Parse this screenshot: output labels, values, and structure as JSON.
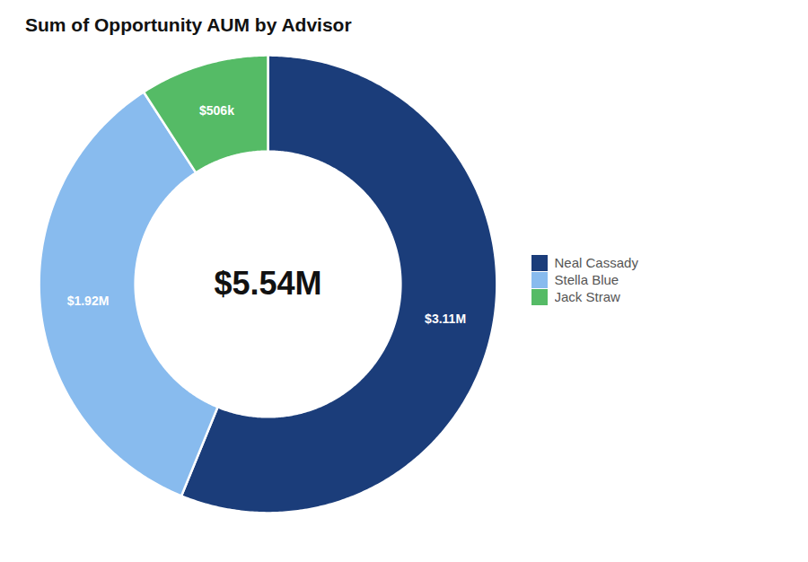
{
  "chart_data": {
    "type": "donut",
    "title": "Sum of Opportunity AUM by Advisor",
    "center_text": "$5.54M",
    "categories": [
      "Neal Cassady",
      "Stella Blue",
      "Jack Straw"
    ],
    "values": [
      3.11,
      1.92,
      0.506
    ],
    "value_labels": [
      "$3.11M",
      "$1.92M",
      "$506k"
    ],
    "colors": [
      "#1b3d7a",
      "#88bbee",
      "#55bb66"
    ],
    "data_labels": true,
    "legend": "right"
  }
}
